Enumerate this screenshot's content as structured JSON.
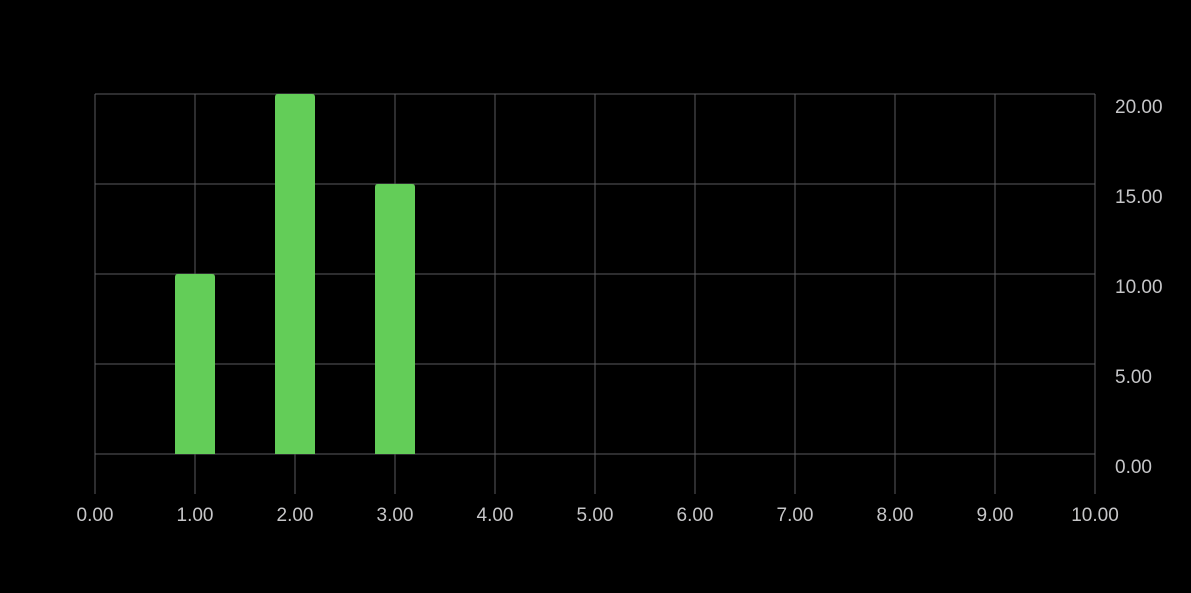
{
  "colors": {
    "background": "#000000",
    "grid": "#5a5a5e",
    "bar": "#63cd58",
    "tick_text": "#c6c6c8"
  },
  "chart_data": {
    "type": "bar",
    "title": "",
    "xlabel": "",
    "ylabel": "",
    "x": [
      1,
      2,
      3
    ],
    "values": [
      10,
      20,
      15
    ],
    "xlim": [
      0,
      10
    ],
    "ylim": [
      0,
      20
    ],
    "x_ticks": [
      "0.00",
      "1.00",
      "2.00",
      "3.00",
      "4.00",
      "5.00",
      "6.00",
      "7.00",
      "8.00",
      "9.00",
      "10.00"
    ],
    "y_ticks": [
      "0.00",
      "5.00",
      "10.00",
      "15.00",
      "20.00"
    ],
    "y_axis_position": "right",
    "grid": true,
    "legend": "none"
  }
}
